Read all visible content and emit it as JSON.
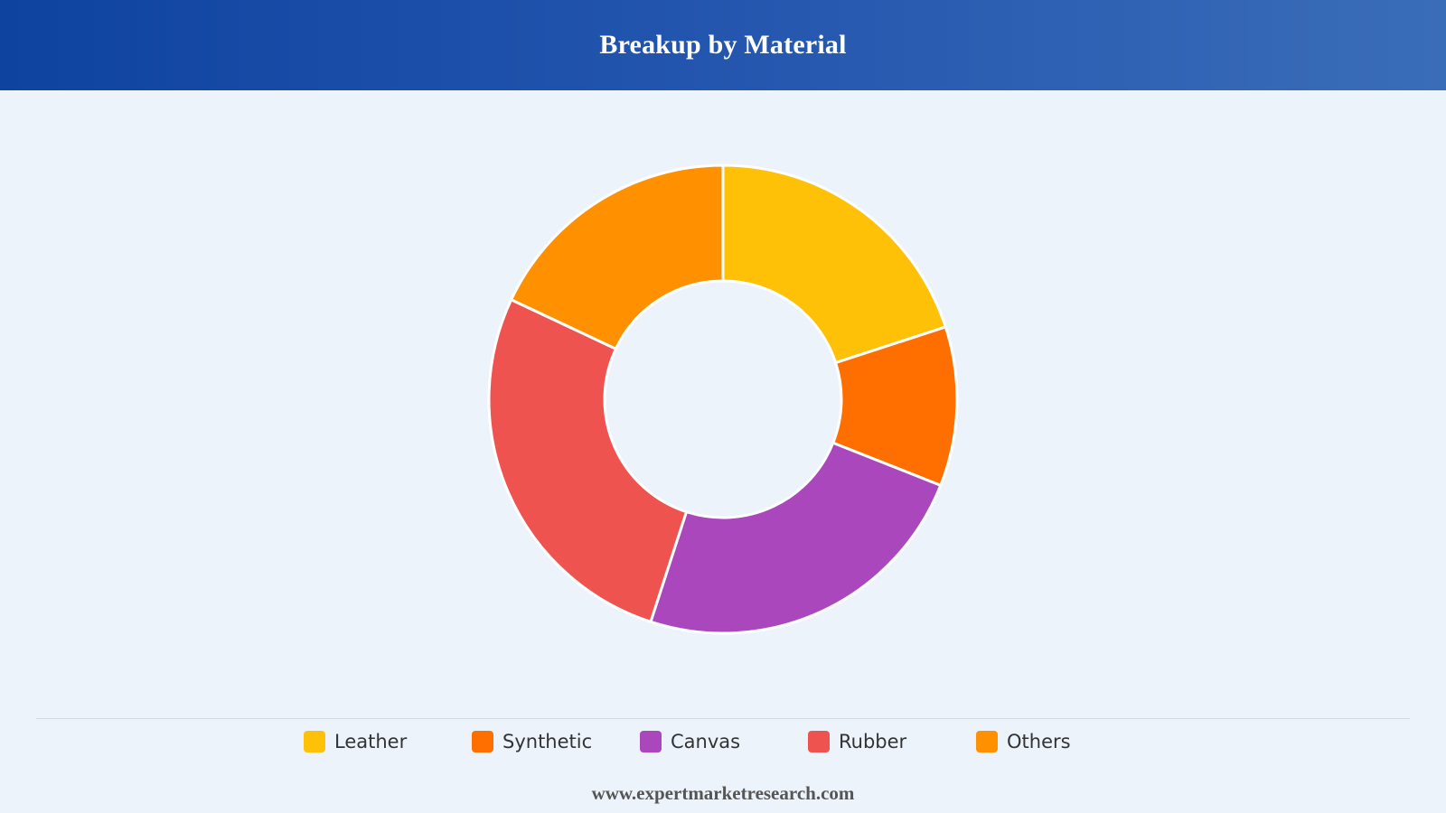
{
  "header": {
    "title": "Breakup by Material"
  },
  "chart_data": {
    "type": "pie",
    "variant": "donut",
    "title": "Breakup by Material",
    "categories": [
      "Leather",
      "Synthetic",
      "Canvas",
      "Rubber",
      "Others"
    ],
    "values": [
      20,
      11,
      24,
      27,
      18
    ],
    "unit": "%",
    "colors": [
      "#ffc107",
      "#ff6f00",
      "#ab47bc",
      "#ef5350",
      "#ff9100"
    ],
    "legend_position": "bottom",
    "start_angle": "12 o'clock, clockwise"
  },
  "footer": {
    "text": "www.expertmarketresearch.com"
  }
}
